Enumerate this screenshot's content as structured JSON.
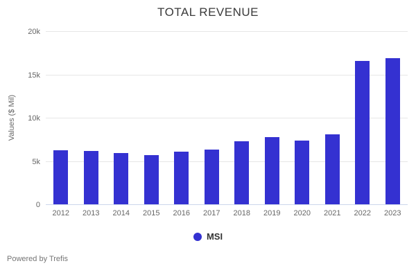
{
  "title": "TOTAL REVENUE",
  "footer": {
    "credit": "Powered by Trefis"
  },
  "legend": {
    "label": "MSI"
  },
  "colors": {
    "bar": "#3431d1",
    "gridline": "#e6e6e6",
    "axis_line": "#ccd6eb",
    "title_text": "#3a3a3a",
    "tick_text": "#666666",
    "footer_text": "#757575"
  },
  "chart_data": {
    "type": "bar",
    "title": "TOTAL REVENUE",
    "xlabel": "",
    "ylabel": "Values ($ Mil)",
    "categories": [
      "2012",
      "2013",
      "2014",
      "2015",
      "2016",
      "2017",
      "2018",
      "2019",
      "2020",
      "2021",
      "2022",
      "2023"
    ],
    "series": [
      {
        "name": "MSI",
        "color": "#3431d1",
        "values": [
          6250,
          6150,
          5900,
          5700,
          6050,
          6300,
          7300,
          7800,
          7400,
          8100,
          16600,
          16900
        ]
      }
    ],
    "ylim": [
      0,
      20000
    ],
    "yticks": [
      0,
      5000,
      10000,
      15000,
      20000
    ],
    "ytick_labels": [
      "0",
      "5k",
      "10k",
      "15k",
      "20k"
    ],
    "grid": true,
    "legend_position": "bottom-center"
  }
}
